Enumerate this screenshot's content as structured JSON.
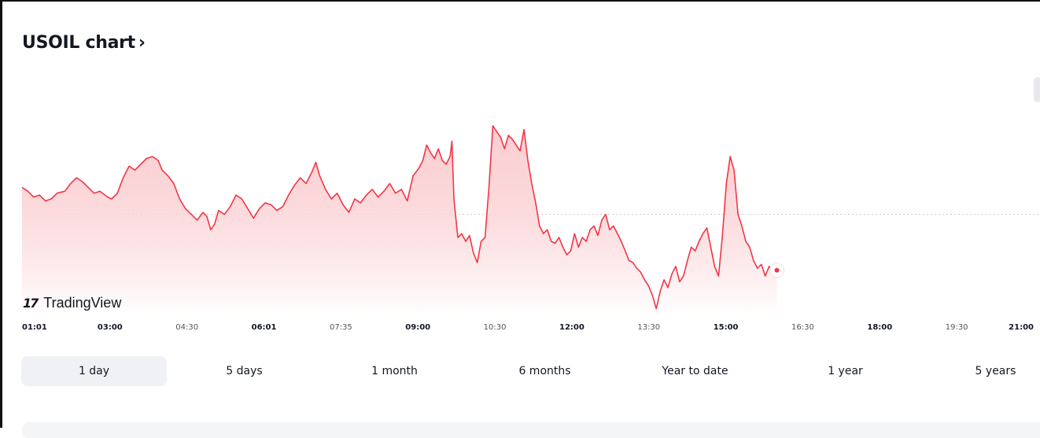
{
  "header": {
    "title": "USOIL chart",
    "chevron": "›"
  },
  "watermark": {
    "mark": "17",
    "name": "TradingView"
  },
  "colors": {
    "line": "#f23645",
    "fill_top": "#f7a8ae",
    "fill_bottom": "#ffffff",
    "dotted_ref": "#c8c9cc",
    "active_bg": "#f0f1f4"
  },
  "x_ticks": [
    {
      "label": "01:01",
      "style": "major"
    },
    {
      "label": "03:00",
      "style": "major"
    },
    {
      "label": "04:30",
      "style": "minor"
    },
    {
      "label": "06:01",
      "style": "major"
    },
    {
      "label": "07:35",
      "style": "minor"
    },
    {
      "label": "09:00",
      "style": "major"
    },
    {
      "label": "10:30",
      "style": "minor"
    },
    {
      "label": "12:00",
      "style": "major"
    },
    {
      "label": "13:30",
      "style": "minor"
    },
    {
      "label": "15:00",
      "style": "major"
    },
    {
      "label": "16:30",
      "style": "minor"
    },
    {
      "label": "18:00",
      "style": "major"
    },
    {
      "label": "19:30",
      "style": "minor"
    },
    {
      "label": "21:00",
      "style": "major"
    }
  ],
  "ranges": [
    {
      "label": "1 day",
      "active": true
    },
    {
      "label": "5 days",
      "active": false
    },
    {
      "label": "1 month",
      "active": false
    },
    {
      "label": "6 months",
      "active": false
    },
    {
      "label": "Year to date",
      "active": false
    },
    {
      "label": "1 year",
      "active": false
    },
    {
      "label": "5 years",
      "active": false
    }
  ],
  "chart_data": {
    "type": "area",
    "title": "USOIL chart",
    "xlabel": "",
    "ylabel": "",
    "y_axis_labels_shown": false,
    "grid": false,
    "x_domain": [
      "01:01",
      "21:00"
    ],
    "reference_line": "previous close (dotted horizontal)",
    "note_values": "relative price level 0-100 (no y axis printed)",
    "series": [
      {
        "values": [
          [
            0,
            66
          ],
          [
            3,
            64
          ],
          [
            6,
            61
          ],
          [
            9,
            62
          ],
          [
            12,
            59
          ],
          [
            15,
            60
          ],
          [
            18,
            63
          ],
          [
            22,
            64
          ],
          [
            25,
            68
          ],
          [
            28,
            71
          ],
          [
            31,
            69
          ],
          [
            34,
            66
          ],
          [
            37,
            63
          ],
          [
            40,
            64
          ],
          [
            44,
            61
          ],
          [
            46,
            60
          ],
          [
            49,
            63
          ],
          [
            52,
            71
          ],
          [
            55,
            77
          ],
          [
            58,
            75
          ],
          [
            61,
            78
          ],
          [
            64,
            81
          ],
          [
            67,
            82
          ],
          [
            70,
            80
          ],
          [
            72,
            75
          ],
          [
            75,
            72
          ],
          [
            78,
            68
          ],
          [
            81,
            60
          ],
          [
            84,
            55
          ],
          [
            87,
            52
          ],
          [
            90,
            49
          ],
          [
            93,
            53
          ],
          [
            95,
            51
          ],
          [
            97,
            44
          ],
          [
            99,
            47
          ],
          [
            101,
            54
          ],
          [
            104,
            52
          ],
          [
            107,
            56
          ],
          [
            110,
            62
          ],
          [
            113,
            60
          ],
          [
            116,
            55
          ],
          [
            119,
            50
          ],
          [
            122,
            55
          ],
          [
            125,
            58
          ],
          [
            128,
            57
          ],
          [
            131,
            54
          ],
          [
            134,
            56
          ],
          [
            137,
            62
          ],
          [
            140,
            67
          ],
          [
            143,
            71
          ],
          [
            146,
            68
          ],
          [
            149,
            74
          ],
          [
            151,
            79
          ],
          [
            153,
            72
          ],
          [
            156,
            65
          ],
          [
            159,
            60
          ],
          [
            162,
            63
          ],
          [
            165,
            57
          ],
          [
            168,
            53
          ],
          [
            171,
            60
          ],
          [
            174,
            58
          ],
          [
            177,
            62
          ],
          [
            180,
            65
          ],
          [
            183,
            61
          ],
          [
            186,
            64
          ],
          [
            189,
            68
          ],
          [
            192,
            63
          ],
          [
            195,
            65
          ],
          [
            198,
            59
          ],
          [
            201,
            72
          ],
          [
            204,
            76
          ],
          [
            206,
            80
          ],
          [
            208,
            88
          ],
          [
            210,
            84
          ],
          [
            212,
            81
          ],
          [
            214,
            86
          ],
          [
            216,
            80
          ],
          [
            218,
            78
          ],
          [
            220,
            82
          ],
          [
            221,
            90
          ],
          [
            222,
            60
          ],
          [
            224,
            40
          ],
          [
            226,
            42
          ],
          [
            228,
            38
          ],
          [
            230,
            41
          ],
          [
            232,
            32
          ],
          [
            234,
            27
          ],
          [
            236,
            38
          ],
          [
            238,
            40
          ],
          [
            240,
            66
          ],
          [
            242,
            98
          ],
          [
            244,
            95
          ],
          [
            246,
            92
          ],
          [
            248,
            86
          ],
          [
            250,
            93
          ],
          [
            252,
            91
          ],
          [
            254,
            88
          ],
          [
            256,
            85
          ],
          [
            258,
            96
          ],
          [
            260,
            80
          ],
          [
            262,
            68
          ],
          [
            264,
            58
          ],
          [
            266,
            46
          ],
          [
            268,
            42
          ],
          [
            270,
            44
          ],
          [
            272,
            38
          ],
          [
            274,
            37
          ],
          [
            276,
            40
          ],
          [
            278,
            35
          ],
          [
            280,
            31
          ],
          [
            282,
            33
          ],
          [
            284,
            42
          ],
          [
            286,
            35
          ],
          [
            288,
            40
          ],
          [
            290,
            38
          ],
          [
            292,
            44
          ],
          [
            294,
            46
          ],
          [
            296,
            41
          ],
          [
            298,
            49
          ],
          [
            300,
            52
          ],
          [
            302,
            44
          ],
          [
            304,
            46
          ],
          [
            306,
            42
          ],
          [
            308,
            38
          ],
          [
            310,
            33
          ],
          [
            312,
            28
          ],
          [
            314,
            27
          ],
          [
            316,
            24
          ],
          [
            318,
            22
          ],
          [
            320,
            18
          ],
          [
            322,
            15
          ],
          [
            324,
            10
          ],
          [
            326,
            3
          ],
          [
            328,
            12
          ],
          [
            330,
            18
          ],
          [
            332,
            14
          ],
          [
            334,
            21
          ],
          [
            336,
            25
          ],
          [
            338,
            17
          ],
          [
            340,
            20
          ],
          [
            342,
            28
          ],
          [
            344,
            35
          ],
          [
            346,
            33
          ],
          [
            348,
            38
          ],
          [
            350,
            42
          ],
          [
            352,
            45
          ],
          [
            354,
            35
          ],
          [
            356,
            25
          ],
          [
            358,
            20
          ],
          [
            360,
            41
          ],
          [
            362,
            68
          ],
          [
            364,
            82
          ],
          [
            366,
            75
          ],
          [
            368,
            52
          ],
          [
            370,
            46
          ],
          [
            372,
            38
          ],
          [
            374,
            35
          ],
          [
            376,
            28
          ],
          [
            378,
            24
          ],
          [
            380,
            26
          ],
          [
            382,
            20
          ],
          [
            384,
            25
          ],
          [
            386,
            22
          ],
          [
            388,
            23
          ]
        ]
      }
    ],
    "x_max": 520,
    "reference_value": 52
  }
}
